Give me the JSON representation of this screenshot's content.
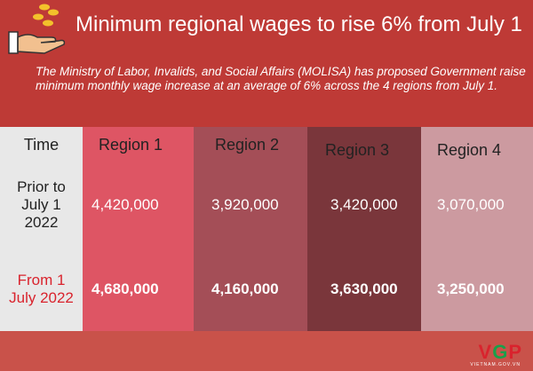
{
  "title": "Minimum regional wages to rise 6% from July 1",
  "description": "The Ministry of Labor, Invalids, and Social Affairs (MOLISA) has proposed Government raise  minimum monthly wage increase at an average of 6% across the 4 regions from July 1.",
  "icon": "hand-coins-icon",
  "table": {
    "time_header": "Time",
    "regions": [
      "Region 1",
      "Region 2",
      "Region 3",
      "Region 4"
    ],
    "rows": [
      {
        "time": "Prior to July 1 2022",
        "values": [
          "4,420,000",
          "3,920,000",
          "3,420,000",
          "3,070,000"
        ]
      },
      {
        "time": "From 1 July 2022",
        "values": [
          "4,680,000",
          "4,160,000",
          "3,630,000",
          "3,250,000"
        ]
      }
    ]
  },
  "colors": {
    "header_bg": "#be3a36",
    "col_time": "#e8e8e8",
    "region1": "#de5564",
    "region2": "#a44e57",
    "region3": "#7a363b",
    "region4": "#cc9aa0",
    "highlight_red": "#d9232d"
  },
  "logo": {
    "text_v": "V",
    "text_g": "G",
    "text_p": "P",
    "sub": "VIETNAM.GOV.VN"
  }
}
